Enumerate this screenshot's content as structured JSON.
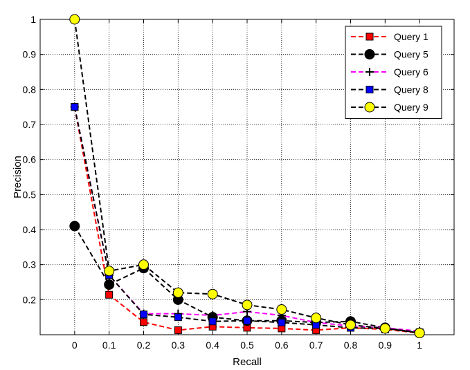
{
  "chart_data": {
    "type": "line",
    "title": "",
    "xlabel": "Recall",
    "ylabel": "Precision",
    "xlim": [
      -0.1,
      1.1
    ],
    "ylim": [
      0.1,
      1.0
    ],
    "x_ticks": [
      0,
      0.1,
      0.2,
      0.3,
      0.4,
      0.5,
      0.6,
      0.7,
      0.8,
      0.9,
      1
    ],
    "x_tick_labels": [
      "0",
      "0.1",
      "0.2",
      "0.3",
      "0.4",
      "0.5",
      "0.6",
      "0.7",
      "0.8",
      "0.9",
      "1"
    ],
    "y_ticks": [
      0.2,
      0.3,
      0.4,
      0.5,
      0.6,
      0.7,
      0.8,
      0.9,
      1
    ],
    "y_tick_labels": [
      "0.2",
      "0.3",
      "0.4",
      "0.5",
      "0.6",
      "0.7",
      "0.8",
      "0.9",
      "1"
    ],
    "grid": true,
    "legend_position": "top-right",
    "x": [
      0,
      0.1,
      0.2,
      0.3,
      0.4,
      0.5,
      0.6,
      0.7,
      0.8,
      0.9,
      1
    ],
    "series": [
      {
        "name": "Query 1",
        "line_color": "#ff0000",
        "marker": "square",
        "marker_fill": "#ff0000",
        "values": [
          0.75,
          0.214,
          0.136,
          0.113,
          0.123,
          0.12,
          0.118,
          0.113,
          0.12,
          0.115,
          0.105
        ]
      },
      {
        "name": "Query 5",
        "line_color": "#000000",
        "marker": "circle",
        "marker_fill": "#000000",
        "values": [
          0.41,
          0.243,
          0.29,
          0.2,
          0.15,
          0.14,
          0.14,
          0.135,
          0.138,
          0.12,
          0.105
        ]
      },
      {
        "name": "Query 6",
        "line_color": "#ff00ff",
        "marker": "plus",
        "marker_fill": "#000000",
        "values": [
          0.75,
          0.27,
          0.16,
          0.16,
          0.155,
          0.166,
          0.155,
          0.135,
          0.125,
          0.12,
          0.11
        ]
      },
      {
        "name": "Query 8",
        "line_color": "#000000",
        "marker": "square",
        "marker_fill": "#0000ff",
        "values": [
          0.75,
          0.27,
          0.158,
          0.15,
          0.138,
          0.14,
          0.135,
          0.128,
          0.12,
          0.118,
          0.107
        ]
      },
      {
        "name": "Query 9",
        "line_color": "#000000",
        "marker": "circle",
        "marker_fill": "#ffff00",
        "values": [
          1.0,
          0.282,
          0.3,
          0.22,
          0.216,
          0.185,
          0.172,
          0.148,
          0.128,
          0.118,
          0.105
        ]
      }
    ]
  }
}
